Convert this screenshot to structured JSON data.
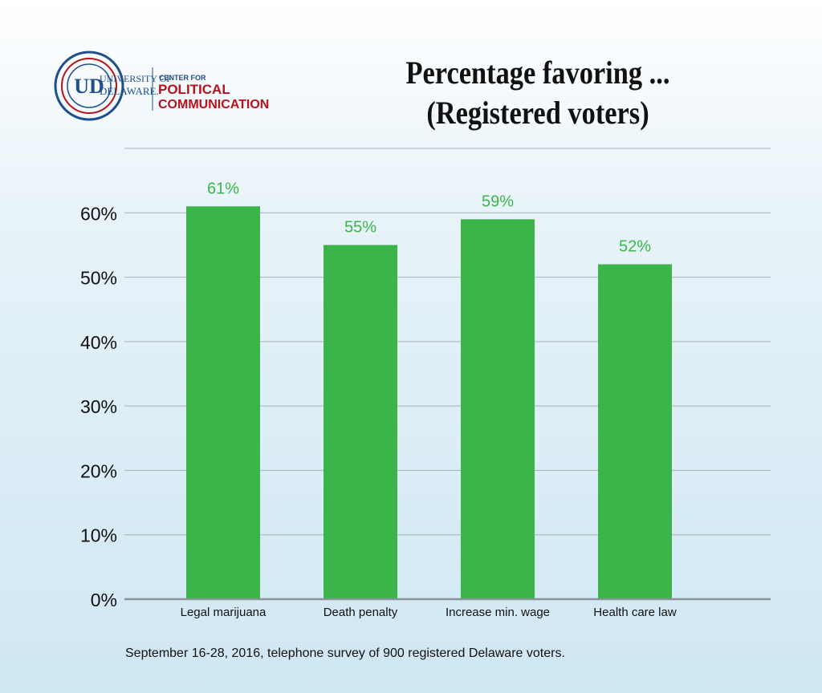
{
  "logo": {
    "university_line1": "UNIVERSITY OF",
    "university_line2": "DELAWARE.",
    "center_small": "CENTER FOR",
    "center_line1": "POLITICAL",
    "center_line2": "COMMUNICATION",
    "mark": "UD",
    "colors": {
      "blue": "#1f4e8c",
      "red": "#b5121b"
    }
  },
  "title_line1": "Percentage favoring ...",
  "title_line2": "(Registered voters)",
  "footnote": "September 16-28, 2016, telephone survey of 900 registered Delaware voters.",
  "chart_data": {
    "type": "bar",
    "title": "Percentage favoring ... (Registered voters)",
    "categories": [
      "Legal marijuana",
      "Death penalty",
      "Increase min. wage",
      "Health care law"
    ],
    "values": [
      61,
      55,
      59,
      52
    ],
    "value_labels": [
      "61%",
      "55%",
      "59%",
      "52%"
    ],
    "yticks": [
      0,
      10,
      20,
      30,
      40,
      50,
      60
    ],
    "ytick_labels": [
      "0%",
      "10%",
      "20%",
      "30%",
      "40%",
      "50%",
      "60%"
    ],
    "ylim": [
      0,
      70
    ],
    "grid": true,
    "colors": {
      "bar": "#3bb54a",
      "label": "#3bb54a",
      "grid": "#a9b2b8",
      "axis": "#8a9298"
    }
  }
}
